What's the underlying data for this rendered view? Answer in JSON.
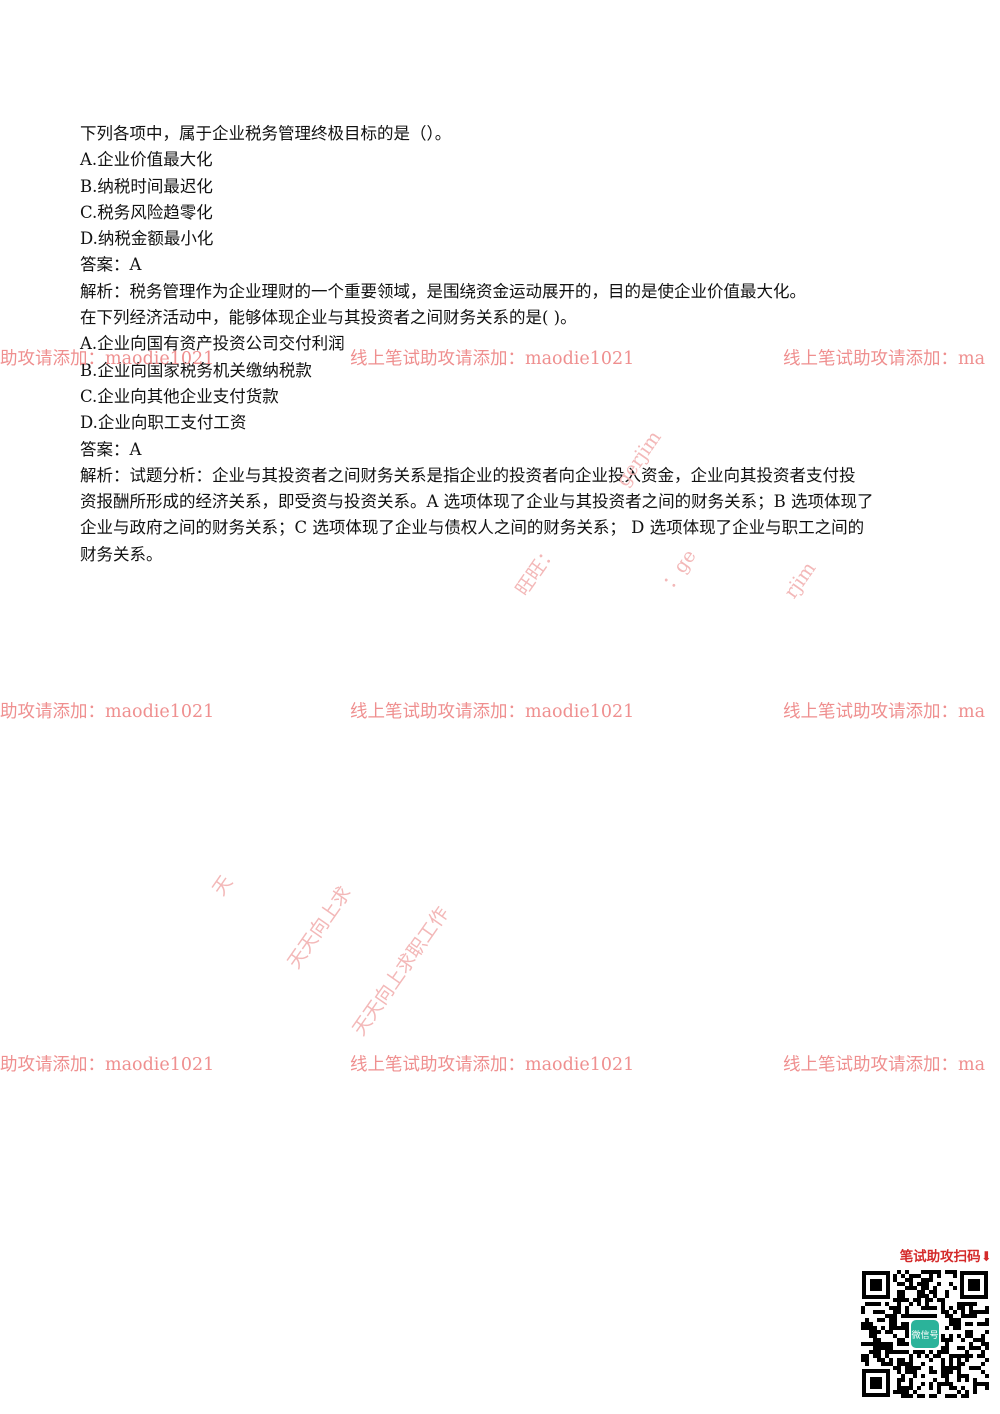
{
  "questions": [
    {
      "stem": "下列各项中，属于企业税务管理终极目标的是（）。",
      "options": [
        "A.企业价值最大化",
        "B.纳税时间最迟化",
        "C.税务风险趋零化",
        "D.纳税金额最小化"
      ],
      "answer": "答案：A",
      "analysis": "解析：税务管理作为企业理财的一个重要领域，是围绕资金运动展开的，目的是使企业价值最大化。"
    },
    {
      "stem": "在下列经济活动中，能够体现企业与其投资者之间财务关系的是( )。",
      "options": [
        "A.企业向国有资产投资公司交付利润",
        "B.企业向国家税务机关缴纳税款",
        "C.企业向其他企业支付货款",
        "D.企业向职工支付工资"
      ],
      "answer": "答案：A",
      "analysis_lines": [
        "解析：试题分析：企业与其投资者之间财务关系是指企业的投资者向企业投入资金，企业向其投资者支付投",
        "资报酬所形成的经济关系，即受资与投资关系。A 选项体现了企业与其投资者之间的财务关系；B 选项体现了",
        "企业与政府之间的财务关系；C 选项体现了企业与债权人之间的财务关系；  D 选项体现了企业与职工之间的",
        "财务关系。"
      ]
    }
  ],
  "watermarks": {
    "left": "助攻请添加：maodie1021",
    "center": "线上笔试助攻请添加：maodie1021",
    "right": "线上笔试助攻请添加：ma",
    "diagonal": [
      "旺旺：",
      "gerjim",
      "：ge",
      "rjim",
      "天",
      "天天向上求",
      "天天向上求职工作"
    ]
  },
  "qr": {
    "caption": "笔试助攻扫码⬇",
    "center_label": "微信号",
    "center_color": "#2bb39a"
  }
}
